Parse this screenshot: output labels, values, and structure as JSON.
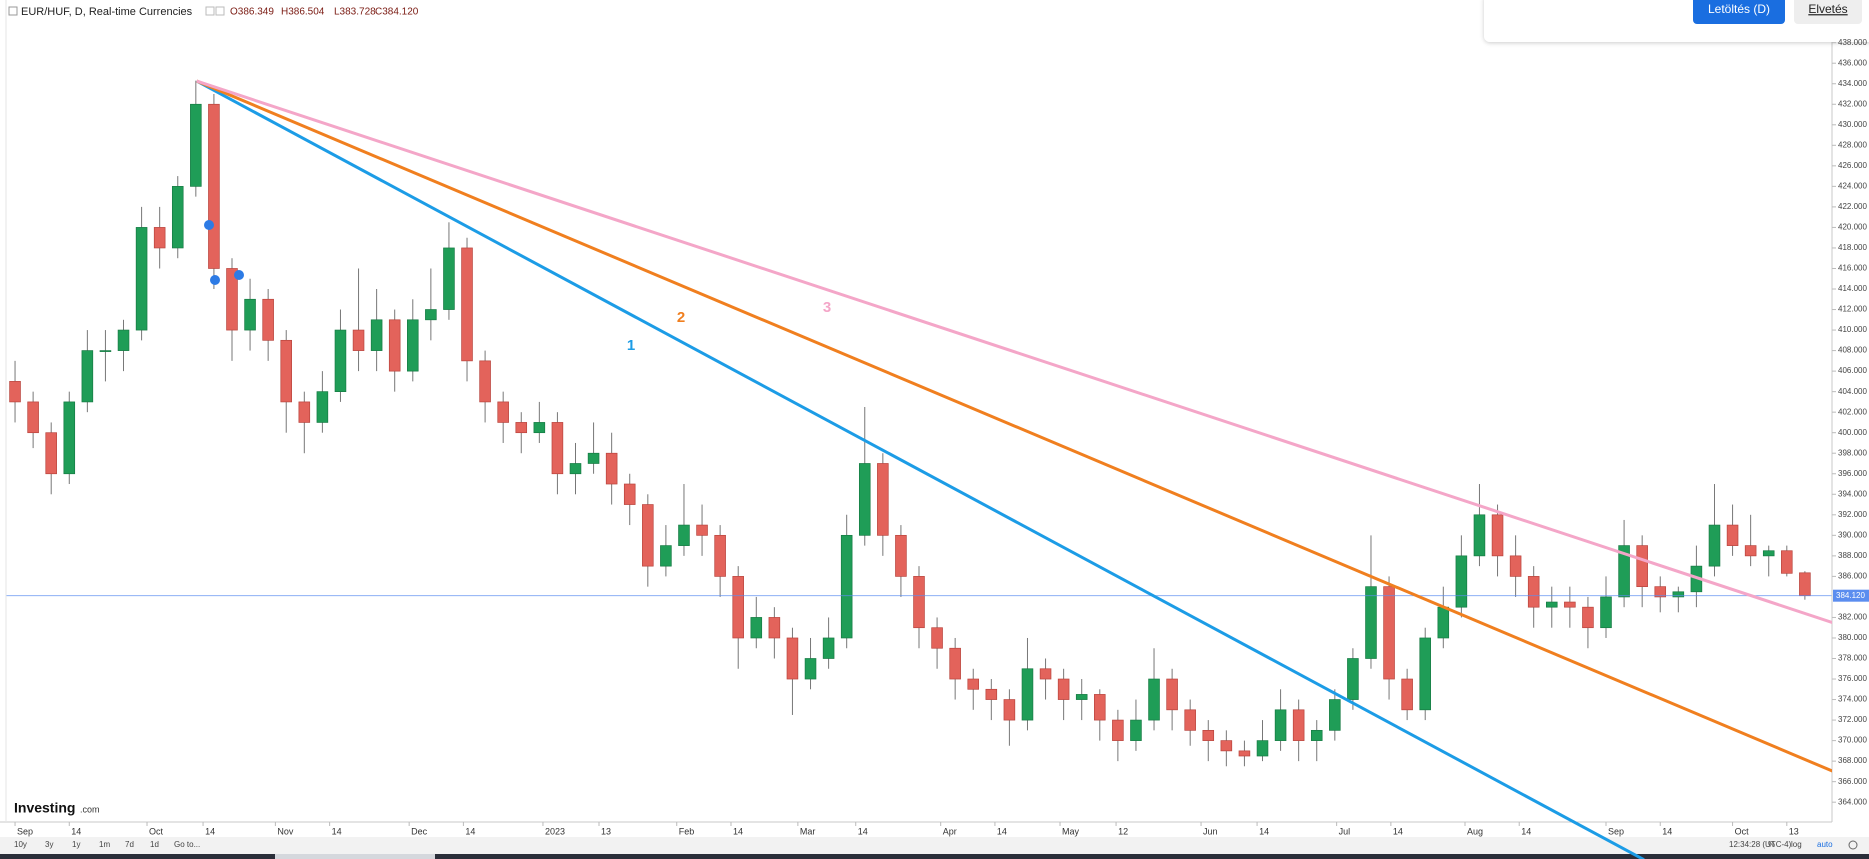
{
  "header": {
    "symbol": "EUR/HUF, D, Real-time Currencies",
    "open": "O386.349",
    "high": "H386.504",
    "low": "L383.728",
    "close": "C384.120"
  },
  "dialog": {
    "primary": "Letöltés (D)",
    "secondary": "Elvetés"
  },
  "toolbar": {
    "ranges": [
      "10y",
      "3y",
      "1y",
      "1m",
      "7d",
      "1d",
      "Go to..."
    ],
    "clock": "12:34:28 (UTC-4)",
    "options": [
      "%",
      "log",
      "auto"
    ]
  },
  "logo": {
    "brand": "Investing",
    "suffix": ".com"
  },
  "chart_data": {
    "type": "candlestick",
    "up_color": "#1f9d57",
    "down_color": "#e3635b",
    "xlim": [
      -0.5,
      100.5
    ],
    "ylim": [
      362.07,
      440.21
    ],
    "yticks": [
      {
        "value": 364,
        "label": "364.000"
      },
      {
        "value": 366,
        "label": "366.000"
      },
      {
        "value": 368,
        "label": "368.000"
      },
      {
        "value": 370,
        "label": "370.000"
      },
      {
        "value": 372,
        "label": "372.000"
      },
      {
        "value": 374,
        "label": "374.000"
      },
      {
        "value": 376,
        "label": "376.000"
      },
      {
        "value": 378,
        "label": "378.000"
      },
      {
        "value": 380,
        "label": "380.000"
      },
      {
        "value": 382,
        "label": "382.000"
      },
      {
        "value": 386,
        "label": "386.000"
      },
      {
        "value": 388,
        "label": "388.000"
      },
      {
        "value": 390,
        "label": "390.000"
      },
      {
        "value": 392,
        "label": "392.000"
      },
      {
        "value": 394,
        "label": "394.000"
      },
      {
        "value": 396,
        "label": "396.000"
      },
      {
        "value": 398,
        "label": "398.000"
      },
      {
        "value": 400,
        "label": "400.000"
      },
      {
        "value": 402,
        "label": "402.000"
      },
      {
        "value": 404,
        "label": "404.000"
      },
      {
        "value": 406,
        "label": "406.000"
      },
      {
        "value": 408,
        "label": "408.000"
      },
      {
        "value": 410,
        "label": "410.000"
      },
      {
        "value": 412,
        "label": "412.000"
      },
      {
        "value": 414,
        "label": "414.000"
      },
      {
        "value": 416,
        "label": "416.000"
      },
      {
        "value": 418,
        "label": "418.000"
      },
      {
        "value": 420,
        "label": "420.000"
      },
      {
        "value": 422,
        "label": "422.000"
      },
      {
        "value": 424,
        "label": "424.000"
      },
      {
        "value": 426,
        "label": "426.000"
      },
      {
        "value": 428,
        "label": "428.000"
      },
      {
        "value": 430,
        "label": "430.000"
      },
      {
        "value": 432,
        "label": "432.000"
      },
      {
        "value": 434,
        "label": "434.000"
      },
      {
        "value": 436,
        "label": "436.000"
      },
      {
        "value": 438,
        "label": "438.000"
      }
    ],
    "xticks": [
      {
        "value": 0,
        "label": "Sep"
      },
      {
        "value": 3,
        "label": "14"
      },
      {
        "value": 7.3,
        "label": "Oct"
      },
      {
        "value": 10.4,
        "label": "14"
      },
      {
        "value": 14.4,
        "label": "Nov"
      },
      {
        "value": 17.4,
        "label": "14"
      },
      {
        "value": 21.8,
        "label": "Dec"
      },
      {
        "value": 24.8,
        "label": "14"
      },
      {
        "value": 29.2,
        "label": "2023"
      },
      {
        "value": 32.3,
        "label": "13"
      },
      {
        "value": 36.6,
        "label": "Feb"
      },
      {
        "value": 39.6,
        "label": "14"
      },
      {
        "value": 43.3,
        "label": "Mar"
      },
      {
        "value": 46.5,
        "label": "14"
      },
      {
        "value": 51.2,
        "label": "Apr"
      },
      {
        "value": 54.2,
        "label": "14"
      },
      {
        "value": 57.8,
        "label": "May"
      },
      {
        "value": 60.9,
        "label": "12"
      },
      {
        "value": 65.6,
        "label": "Jun"
      },
      {
        "value": 68.7,
        "label": "14"
      },
      {
        "value": 73.1,
        "label": "Jul"
      },
      {
        "value": 76.1,
        "label": "14"
      },
      {
        "value": 80.2,
        "label": "Aug"
      },
      {
        "value": 83.2,
        "label": "14"
      },
      {
        "value": 88,
        "label": "Sep"
      },
      {
        "value": 91,
        "label": "14"
      },
      {
        "value": 95,
        "label": "Oct"
      },
      {
        "value": 98,
        "label": "13"
      }
    ],
    "ohlc": [
      [
        405,
        407,
        401,
        403
      ],
      [
        403,
        404,
        398.5,
        400
      ],
      [
        400,
        401,
        394,
        396
      ],
      [
        396,
        404,
        395,
        403
      ],
      [
        403,
        410,
        402,
        408
      ],
      [
        408,
        410,
        405,
        408
      ],
      [
        408,
        411,
        406,
        410
      ],
      [
        410,
        422,
        409,
        420
      ],
      [
        420,
        422,
        416,
        418
      ],
      [
        418,
        425,
        417,
        424
      ],
      [
        424,
        434.3,
        423,
        432
      ],
      [
        432,
        433,
        414,
        416
      ],
      [
        416,
        417,
        407,
        410
      ],
      [
        410,
        415,
        408,
        413
      ],
      [
        413,
        414,
        407,
        409
      ],
      [
        409,
        410,
        400,
        403
      ],
      [
        403,
        404,
        398,
        401
      ],
      [
        401,
        406,
        400,
        404
      ],
      [
        404,
        412,
        403,
        410
      ],
      [
        410,
        416,
        406,
        408
      ],
      [
        408,
        414,
        406,
        411
      ],
      [
        411,
        412,
        404,
        406
      ],
      [
        406,
        413,
        405,
        411
      ],
      [
        411,
        416,
        409,
        412
      ],
      [
        412,
        420.5,
        411,
        418
      ],
      [
        418,
        419,
        405,
        407
      ],
      [
        407,
        408,
        401,
        403
      ],
      [
        403,
        404,
        399,
        401
      ],
      [
        401,
        402,
        398,
        400
      ],
      [
        400,
        403,
        399,
        401
      ],
      [
        401,
        402,
        394,
        396
      ],
      [
        396,
        399,
        394,
        397
      ],
      [
        397,
        401,
        396,
        398
      ],
      [
        398,
        400,
        393,
        395
      ],
      [
        395,
        396,
        391,
        393
      ],
      [
        393,
        394,
        385,
        387
      ],
      [
        387,
        391,
        386,
        389
      ],
      [
        389,
        395,
        388,
        391
      ],
      [
        391,
        393,
        388,
        390
      ],
      [
        390,
        391,
        384,
        386
      ],
      [
        386,
        387,
        377,
        380
      ],
      [
        380,
        384,
        379,
        382
      ],
      [
        382,
        383,
        378,
        380
      ],
      [
        380,
        381,
        372.5,
        376
      ],
      [
        376,
        380,
        375,
        378
      ],
      [
        378,
        382,
        377,
        380
      ],
      [
        380,
        392,
        379,
        390
      ],
      [
        390,
        402.5,
        389,
        397
      ],
      [
        397,
        398,
        388,
        390
      ],
      [
        390,
        391,
        384,
        386
      ],
      [
        386,
        387,
        379,
        381
      ],
      [
        381,
        382,
        377,
        379
      ],
      [
        379,
        380,
        374,
        376
      ],
      [
        376,
        377,
        373,
        375
      ],
      [
        375,
        376,
        372,
        374
      ],
      [
        374,
        375,
        369.5,
        372
      ],
      [
        372,
        380,
        371,
        377
      ],
      [
        377,
        378,
        374,
        376
      ],
      [
        376,
        377,
        372,
        374
      ],
      [
        374,
        376,
        372,
        374.5
      ],
      [
        374.5,
        375,
        370,
        372
      ],
      [
        372,
        373,
        368,
        370
      ],
      [
        370,
        374,
        369,
        372
      ],
      [
        372,
        379,
        371,
        376
      ],
      [
        376,
        377,
        371,
        373
      ],
      [
        373,
        374,
        369.5,
        371
      ],
      [
        371,
        372,
        368,
        370
      ],
      [
        370,
        371,
        367.5,
        369
      ],
      [
        369,
        370,
        367.5,
        368.5
      ],
      [
        368.5,
        372,
        368,
        370
      ],
      [
        370,
        375,
        369,
        373
      ],
      [
        373,
        374,
        368,
        370
      ],
      [
        370,
        372,
        368,
        371
      ],
      [
        371,
        375,
        370,
        374
      ],
      [
        374,
        379,
        373,
        378
      ],
      [
        378,
        390,
        377,
        385
      ],
      [
        385,
        386,
        374,
        376
      ],
      [
        376,
        377,
        372,
        373
      ],
      [
        373,
        381,
        372,
        380
      ],
      [
        380,
        385,
        379,
        383
      ],
      [
        383,
        390,
        382,
        388
      ],
      [
        388,
        395,
        387,
        392
      ],
      [
        392,
        393,
        386,
        388
      ],
      [
        388,
        390,
        384,
        386
      ],
      [
        386,
        387,
        381,
        383
      ],
      [
        383,
        385,
        381,
        383.5
      ],
      [
        383.5,
        385,
        381,
        383
      ],
      [
        383,
        384,
        379,
        381
      ],
      [
        381,
        386,
        380,
        384
      ],
      [
        384,
        391.5,
        383,
        389
      ],
      [
        389,
        390,
        383,
        385
      ],
      [
        385,
        386,
        382.5,
        384
      ],
      [
        384,
        385,
        382.5,
        384.5
      ],
      [
        384.5,
        389,
        383,
        387
      ],
      [
        387,
        395,
        386,
        391
      ],
      [
        391,
        393,
        388,
        389
      ],
      [
        389,
        392,
        387,
        388
      ],
      [
        388,
        389,
        386,
        388.5
      ],
      [
        388.5,
        389,
        386,
        386.3
      ],
      [
        386.349,
        386.504,
        383.728,
        384.12
      ]
    ],
    "last_price": {
      "value": 384.12,
      "label": "384.120",
      "color": "#5b8def"
    },
    "trendlines": [
      {
        "label": "1",
        "color": "#1c9ce6",
        "start": [
          10.05,
          434.26
        ],
        "end": [
          90.1,
          358.4
        ]
      },
      {
        "label": "2",
        "color": "#f07f1f",
        "start": [
          10.05,
          434.26
        ],
        "end": [
          100.7,
          366.9
        ]
      },
      {
        "label": "3",
        "color": "#f4a6c8",
        "start": [
          10.05,
          434.26
        ],
        "end": [
          100.7,
          381.4
        ]
      }
    ]
  }
}
